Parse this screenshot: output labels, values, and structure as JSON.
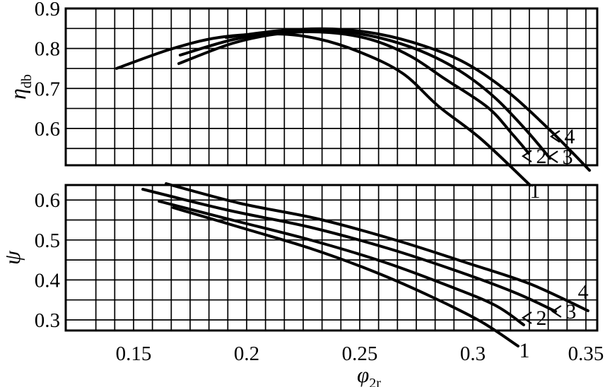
{
  "figure": {
    "bg_color": "#ffffff",
    "line_color": "#000000",
    "grid_color": "#000000",
    "x_axis": {
      "label_main": "φ",
      "label_sub": "2r",
      "domain": [
        0.12,
        0.355
      ],
      "ticks": [
        {
          "v": 0.15,
          "t": "0.15"
        },
        {
          "v": 0.2,
          "t": "0.2"
        },
        {
          "v": 0.25,
          "t": "0.25"
        },
        {
          "v": 0.3,
          "t": "0.3"
        },
        {
          "v": 0.35,
          "t": "0.35"
        }
      ],
      "grid_start": 0.13333,
      "grid_step": 0.0083333
    }
  },
  "chart_data": [
    {
      "type": "line",
      "panel": "top",
      "ylabel_main": "η",
      "ylabel_sub": "db",
      "x_domain": [
        0.12,
        0.355
      ],
      "y_domain": [
        0.508,
        0.9
      ],
      "y_grid": [
        0.55,
        0.6,
        0.65,
        0.7,
        0.75,
        0.8,
        0.85
      ],
      "y_ticks": [
        {
          "v": 0.9,
          "t": "0.9"
        },
        {
          "v": 0.8,
          "t": "0.8"
        },
        {
          "v": 0.7,
          "t": "0.7"
        },
        {
          "v": 0.6,
          "t": "0.6"
        }
      ],
      "grid_on": true,
      "legend": "none",
      "series": [
        {
          "name": "1",
          "points": [
            [
              0.1425,
              0.75
            ],
            [
              0.166,
              0.7975
            ],
            [
              0.1878,
              0.8276
            ],
            [
              0.2128,
              0.8364
            ],
            [
              0.2316,
              0.824
            ],
            [
              0.2503,
              0.7904
            ],
            [
              0.2691,
              0.7374
            ],
            [
              0.2847,
              0.6561
            ],
            [
              0.3034,
              0.5748
            ],
            [
              0.3253,
              0.4582
            ]
          ]
        },
        {
          "name": "2",
          "points": [
            [
              0.17,
              0.7622
            ],
            [
              0.1941,
              0.8134
            ],
            [
              0.2159,
              0.8381
            ],
            [
              0.2363,
              0.8399
            ],
            [
              0.255,
              0.8222
            ],
            [
              0.2722,
              0.7816
            ],
            [
              0.2878,
              0.7233
            ],
            [
              0.3066,
              0.6527
            ],
            [
              0.3175,
              0.5855
            ],
            [
              0.3247,
              0.5378
            ]
          ]
        },
        {
          "name": "3",
          "points": [
            [
              0.1706,
              0.7834
            ],
            [
              0.1941,
              0.8223
            ],
            [
              0.2175,
              0.8417
            ],
            [
              0.2394,
              0.8435
            ],
            [
              0.2581,
              0.8276
            ],
            [
              0.2769,
              0.794
            ],
            [
              0.2941,
              0.7445
            ],
            [
              0.3097,
              0.6774
            ],
            [
              0.3238,
              0.5943
            ],
            [
              0.3341,
              0.5254
            ]
          ]
        },
        {
          "name": "4",
          "points": [
            [
              0.1909,
              0.8276
            ],
            [
              0.2159,
              0.8452
            ],
            [
              0.2378,
              0.8488
            ],
            [
              0.2581,
              0.8364
            ],
            [
              0.2784,
              0.8064
            ],
            [
              0.2972,
              0.7622
            ],
            [
              0.3159,
              0.6897
            ],
            [
              0.3347,
              0.5925
            ],
            [
              0.3516,
              0.4953
            ]
          ]
        }
      ],
      "curve_labels": [
        {
          "text": "1",
          "x": 0.3275,
          "y": 0.444,
          "arrow": false
        },
        {
          "text": "2",
          "x": 0.3303,
          "y": 0.5307,
          "arrow": true
        },
        {
          "text": "3",
          "x": 0.3419,
          "y": 0.529,
          "arrow": true
        },
        {
          "text": "4",
          "x": 0.3428,
          "y": 0.58,
          "arrow": true
        }
      ]
    },
    {
      "type": "line",
      "panel": "bottom",
      "ylabel_main": "ψ",
      "ylabel_sub": "",
      "x_domain": [
        0.12,
        0.355
      ],
      "y_domain": [
        0.2735,
        0.6375
      ],
      "y_grid": [
        0.3,
        0.35,
        0.4,
        0.45,
        0.5,
        0.55,
        0.6
      ],
      "y_ticks": [
        {
          "v": 0.6,
          "t": "0.6"
        },
        {
          "v": 0.5,
          "t": "0.5"
        },
        {
          "v": 0.4,
          "t": "0.4"
        },
        {
          "v": 0.3,
          "t": "0.3"
        }
      ],
      "grid_on": true,
      "legend": "none",
      "series": [
        {
          "name": "1",
          "points": [
            [
              0.1675,
              0.581
            ],
            [
              0.1972,
              0.5315
            ],
            [
              0.2284,
              0.4785
            ],
            [
              0.2566,
              0.4202
            ],
            [
              0.2816,
              0.3583
            ],
            [
              0.3034,
              0.2965
            ],
            [
              0.32,
              0.2346
            ]
          ]
        },
        {
          "name": "2",
          "points": [
            [
              0.1613,
              0.5969
            ],
            [
              0.1941,
              0.5492
            ],
            [
              0.2284,
              0.4997
            ],
            [
              0.2597,
              0.4467
            ],
            [
              0.2878,
              0.3884
            ],
            [
              0.3097,
              0.3371
            ],
            [
              0.3225,
              0.2877
            ]
          ]
        },
        {
          "name": "3",
          "points": [
            [
              0.1541,
              0.6269
            ],
            [
              0.1909,
              0.5757
            ],
            [
              0.2284,
              0.5315
            ],
            [
              0.2628,
              0.4785
            ],
            [
              0.2941,
              0.4202
            ],
            [
              0.3191,
              0.3672
            ],
            [
              0.3366,
              0.3212
            ]
          ]
        },
        {
          "name": "4",
          "points": [
            [
              0.1644,
              0.641
            ],
            [
              0.1972,
              0.5916
            ],
            [
              0.2316,
              0.5527
            ],
            [
              0.2659,
              0.4997
            ],
            [
              0.2972,
              0.4431
            ],
            [
              0.3253,
              0.3901
            ],
            [
              0.3509,
              0.323
            ]
          ]
        }
      ],
      "curve_labels": [
        {
          "text": "1",
          "x": 0.3228,
          "y": 0.224,
          "arrow": false
        },
        {
          "text": "2",
          "x": 0.3303,
          "y": 0.3053,
          "arrow": true
        },
        {
          "text": "3",
          "x": 0.3434,
          "y": 0.3212,
          "arrow": true
        },
        {
          "text": "4",
          "x": 0.3488,
          "y": 0.3707,
          "arrow": false
        }
      ]
    }
  ]
}
